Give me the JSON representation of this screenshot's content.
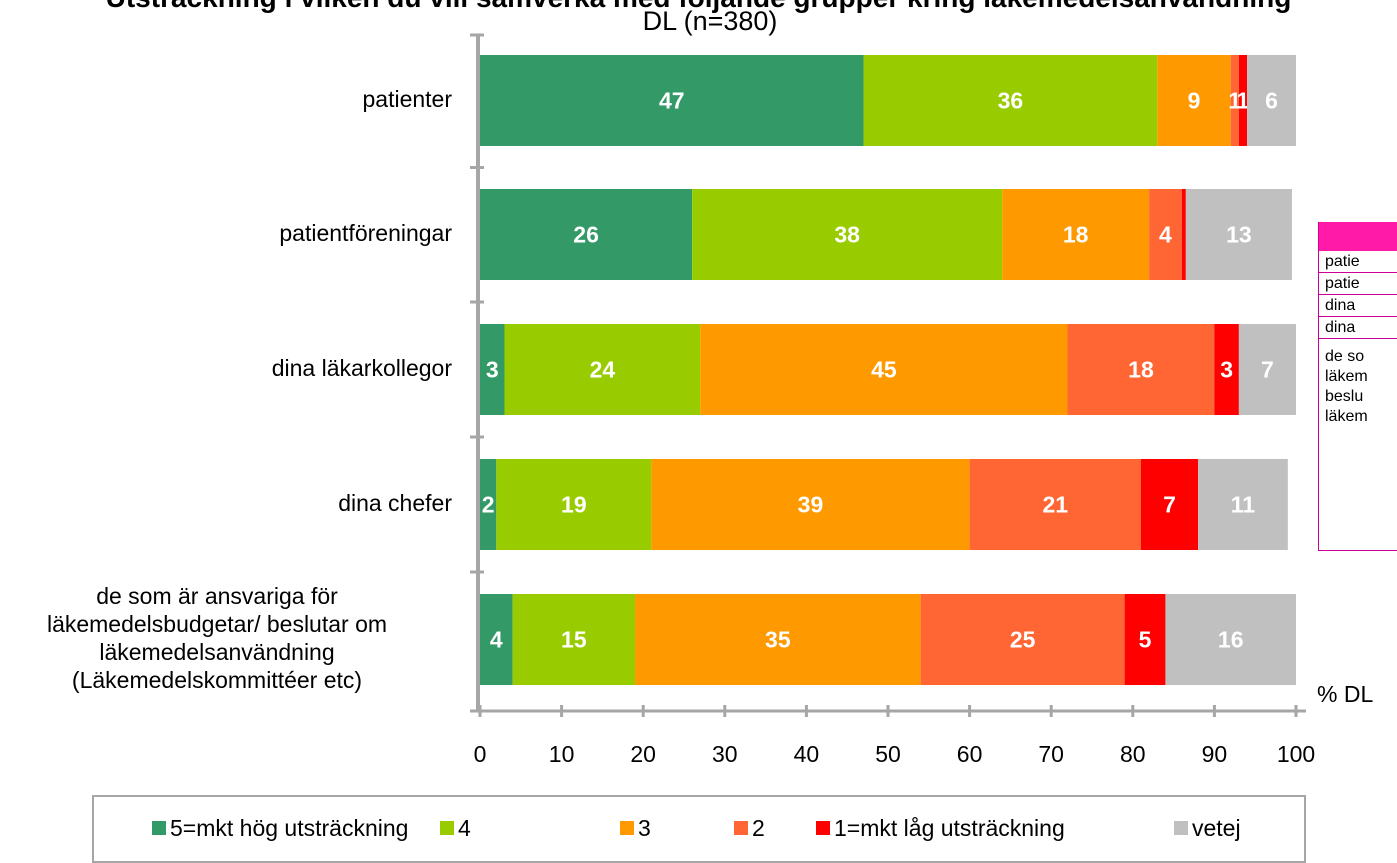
{
  "title": {
    "line1": "Utsträckning i vilken du vill samverka med följande grupper kring läkemedelsanvändning",
    "line2": "DL (n=380)"
  },
  "colors": {
    "s5": "#339966",
    "s4": "#99cc00",
    "s3": "#ff9900",
    "s2": "#ff6633",
    "s1": "#ff0000",
    "vetej": "#c0c0c0",
    "axis": "#a6a6a6",
    "table_header": "#ff1aa8"
  },
  "chart_data": {
    "type": "bar",
    "orientation": "horizontal",
    "stacked": true,
    "categories": [
      "patienter",
      "patientföreningar",
      "dina läkarkollegor",
      "dina chefer",
      "de som är ansvariga för läkemedelsbudgetar/ beslutar om läkemedelsanvändning (Läkemedelskommittéer etc)"
    ],
    "category_lines": [
      [
        "patienter"
      ],
      [
        "patientföreningar"
      ],
      [
        "dina läkarkollegor"
      ],
      [
        "dina chefer"
      ],
      [
        "de som är ansvariga för",
        "läkemedelsbudgetar/ beslutar om",
        "läkemedelsanvändning",
        "(Läkemedelskommittéer etc)"
      ]
    ],
    "series": [
      {
        "name": "5=mkt hög utsträckning",
        "color_key": "s5",
        "values": [
          47,
          26,
          3,
          2,
          4
        ]
      },
      {
        "name": "4",
        "color_key": "s4",
        "values": [
          36,
          38,
          24,
          19,
          15
        ]
      },
      {
        "name": "3",
        "color_key": "s3",
        "values": [
          9,
          18,
          45,
          39,
          35
        ]
      },
      {
        "name": "2",
        "color_key": "s2",
        "values": [
          1,
          4,
          18,
          21,
          25
        ]
      },
      {
        "name": "1=mkt låg utsträckning",
        "color_key": "s1",
        "values": [
          1,
          0.5,
          3,
          7,
          5
        ]
      },
      {
        "name": "vetej",
        "color_key": "vetej",
        "values": [
          6,
          13,
          7,
          11,
          16
        ]
      }
    ],
    "data_labels": [
      [
        "47",
        "36",
        "9",
        "1",
        "1",
        "6"
      ],
      [
        "26",
        "38",
        "18",
        "4",
        "",
        "13"
      ],
      [
        "3",
        "24",
        "45",
        "18",
        "3",
        "7"
      ],
      [
        "2",
        "19",
        "39",
        "21",
        "7",
        "11"
      ],
      [
        "4",
        "15",
        "35",
        "25",
        "5",
        "16"
      ]
    ],
    "xlim": [
      0,
      100
    ],
    "xticks": [
      0,
      10,
      20,
      30,
      40,
      50,
      60,
      70,
      80,
      90,
      100
    ],
    "xlabel": "% DL",
    "grid": false,
    "legend_position": "bottom"
  },
  "side_table": {
    "rows": [
      "patie",
      "patie",
      "dina",
      "dina"
    ],
    "multi": "de so\nläkem\nbeslu\nläkem"
  }
}
